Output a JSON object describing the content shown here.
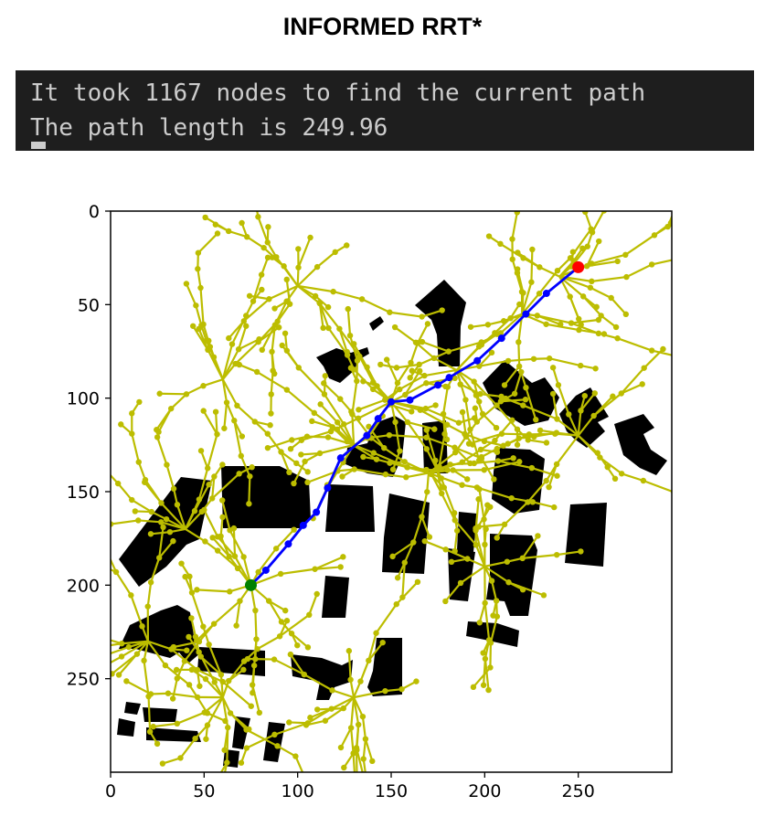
{
  "title": "INFORMED RRT*",
  "console": {
    "line1": "It took 1167 nodes to find the current path",
    "line2": "The path length is 249.96"
  },
  "chart_data": {
    "type": "scatter",
    "title": "",
    "xlabel": "",
    "ylabel": "",
    "xlim": [
      0,
      300
    ],
    "ylim": [
      300,
      0
    ],
    "x_ticks": [
      "0",
      "50",
      "100",
      "150",
      "200",
      "250"
    ],
    "y_ticks": [
      "0",
      "50",
      "100",
      "150",
      "200",
      "250"
    ],
    "colors": {
      "tree": "#bcbd00",
      "path": "#0000ff",
      "start": "#008000",
      "goal": "#ff0000",
      "obstacle": "#000000"
    },
    "start": [
      75,
      200
    ],
    "goal": [
      250,
      30
    ],
    "path": [
      [
        75,
        200
      ],
      [
        83,
        192
      ],
      [
        95,
        178
      ],
      [
        103,
        168
      ],
      [
        110,
        161
      ],
      [
        116,
        148
      ],
      [
        123,
        132
      ],
      [
        137,
        120
      ],
      [
        143,
        111
      ],
      [
        150,
        102
      ],
      [
        160,
        101
      ],
      [
        175,
        93
      ],
      [
        181,
        89
      ],
      [
        196,
        80
      ],
      [
        209,
        68
      ],
      [
        222,
        55
      ],
      [
        233,
        44
      ],
      [
        250,
        30
      ]
    ]
  }
}
